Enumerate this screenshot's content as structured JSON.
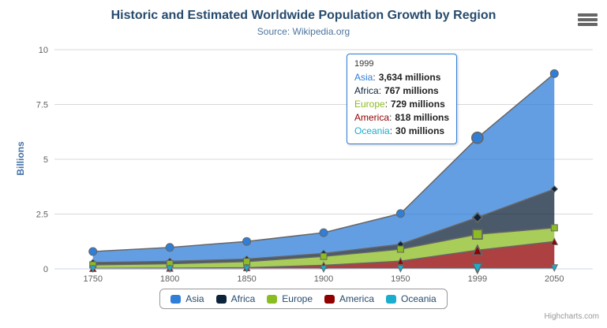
{
  "chart_data": {
    "type": "area",
    "stacking": "normal",
    "title": "Historic and Estimated Worldwide Population Growth by Region",
    "subtitle": "Source: Wikipedia.org",
    "categories": [
      "1750",
      "1800",
      "1850",
      "1900",
      "1950",
      "1999",
      "2050"
    ],
    "values_unit": "millions",
    "ylabel": "Billions",
    "ylim": [
      0,
      10
    ],
    "yticks": [
      0,
      2.5,
      5,
      7.5,
      10
    ],
    "grid": true,
    "legend_position": "bottom",
    "series": [
      {
        "name": "Asia",
        "color": "#2f7ed8",
        "marker": "circle",
        "values": [
          502,
          635,
          809,
          947,
          1402,
          3634,
          5268
        ]
      },
      {
        "name": "Africa",
        "color": "#0d233a",
        "marker": "diamond",
        "values": [
          106,
          107,
          111,
          133,
          221,
          767,
          1766
        ]
      },
      {
        "name": "Europe",
        "color": "#8bbc21",
        "marker": "square",
        "values": [
          163,
          203,
          276,
          408,
          547,
          729,
          628
        ]
      },
      {
        "name": "America",
        "color": "#910000",
        "marker": "triangle",
        "values": [
          18,
          31,
          54,
          156,
          339,
          818,
          1201
        ]
      },
      {
        "name": "Oceania",
        "color": "#1aadce",
        "marker": "triangle-down",
        "values": [
          2,
          2,
          2,
          6,
          13,
          30,
          46
        ]
      }
    ],
    "stack_order_bottom_to_top": [
      "Oceania",
      "America",
      "Europe",
      "Africa",
      "Asia"
    ],
    "hovered_category_index": 5
  },
  "tooltip": {
    "header": "1999",
    "separator": ":",
    "border_color": "#2f7ed8",
    "rows": [
      {
        "name": "Asia",
        "value": "3,634 millions",
        "color": "#2f7ed8"
      },
      {
        "name": "Africa",
        "value": "767 millions",
        "color": "#0d233a"
      },
      {
        "name": "Europe",
        "value": "729 millions",
        "color": "#8bbc21"
      },
      {
        "name": "America",
        "value": "818 millions",
        "color": "#910000"
      },
      {
        "name": "Oceania",
        "value": "30 millions",
        "color": "#1aadce"
      }
    ]
  },
  "credits": {
    "text": "Highcharts.com"
  },
  "styles": {
    "title_color": "#274b6d",
    "subtitle_color": "#4d759e",
    "axis_label_color": "#606060",
    "axis_title_color": "#4572a7",
    "grid_color": "#d8d8d8",
    "axis_line_color": "#ccd6eb",
    "series_line_color": "#666666",
    "fill_opacity": 0.75
  }
}
